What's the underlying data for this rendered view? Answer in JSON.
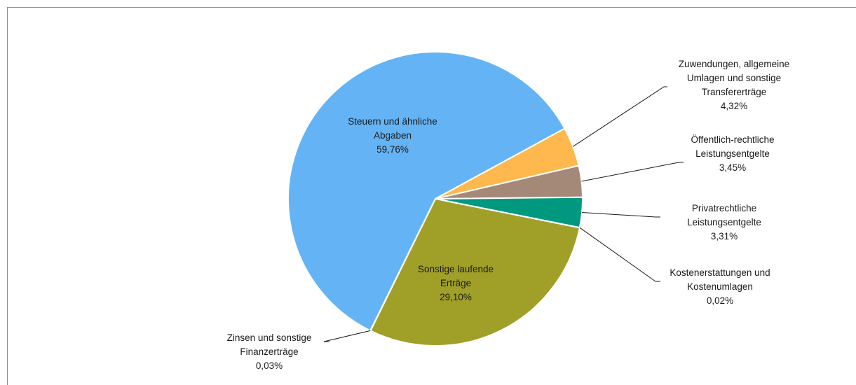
{
  "chart_data": {
    "type": "pie",
    "title": "",
    "slices": [
      {
        "label_lines": [
          "Zuwendungen, allgemeine",
          "Umlagen und sonstige",
          "Transfererträge"
        ],
        "value_text": "4,32%",
        "value": 4.32,
        "color": "#ffb84d"
      },
      {
        "label_lines": [
          "Öffentlich-rechtliche",
          "Leistungsentgelte"
        ],
        "value_text": "3,45%",
        "value": 3.45,
        "color": "#a48878"
      },
      {
        "label_lines": [
          "Privatrechtliche",
          "Leistungsentgelte"
        ],
        "value_text": "3,31%",
        "value": 3.31,
        "color": "#009980"
      },
      {
        "label_lines": [
          "Kostenerstattungen und",
          "Kostenumlagen"
        ],
        "value_text": "0,02%",
        "value": 0.02,
        "color": "#1d7a80"
      },
      {
        "label_lines": [
          "Sonstige laufende",
          "Erträge"
        ],
        "value_text": "29,10%",
        "value": 29.1,
        "color": "#a0a028"
      },
      {
        "label_lines": [
          "Zinsen und sonstige",
          "Finanzerträge"
        ],
        "value_text": "0,03%",
        "value": 0.03,
        "color": "#6b6b2a"
      },
      {
        "label_lines": [
          "Steuern und ähnliche",
          "Abgaben"
        ],
        "value_text": "59,76%",
        "value": 59.76,
        "color": "#64b4f5"
      }
    ]
  }
}
